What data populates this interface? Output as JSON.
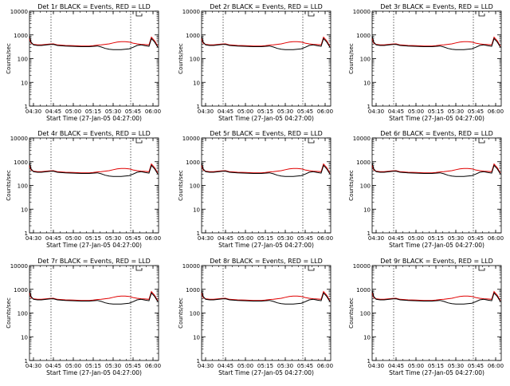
{
  "chart_data": {
    "type": "line",
    "x_ticks": [
      "04:30",
      "04:45",
      "05:00",
      "05:15",
      "05:30",
      "05:45",
      "06:00"
    ],
    "x_tick_hours": [
      4.5,
      4.75,
      5.0,
      5.25,
      5.5,
      5.75,
      6.0
    ],
    "xlim_hours": [
      4.45,
      6.07
    ],
    "xlabel": "Start Time (27-Jan-05 04:27:00)",
    "ylabel": "Counts/sec",
    "yscale": "log",
    "ylim": [
      1,
      10000
    ],
    "y_ticks": [
      "1",
      "10",
      "100",
      "1000",
      "10000"
    ],
    "dotted_vlines_hours": [
      4.72,
      5.72
    ],
    "legend_box_hour": 5.79,
    "grid": false,
    "series_colors": {
      "black": "#000000",
      "red": "#e00000"
    },
    "black_hours": [
      4.45,
      4.47,
      4.5,
      4.55,
      4.6,
      4.7,
      4.75,
      4.8,
      4.9,
      5.0,
      5.1,
      5.2,
      5.25,
      5.3,
      5.35,
      5.4,
      5.45,
      5.5,
      5.55,
      5.6,
      5.65,
      5.7,
      5.75,
      5.8,
      5.85,
      5.9,
      5.95,
      5.98,
      6.02,
      6.06
    ],
    "black_values": [
      900,
      500,
      380,
      360,
      360,
      390,
      400,
      360,
      340,
      330,
      320,
      320,
      330,
      340,
      310,
      270,
      250,
      240,
      240,
      240,
      250,
      260,
      300,
      360,
      380,
      350,
      330,
      700,
      500,
      300
    ],
    "red_hours": [
      4.45,
      4.47,
      4.5,
      4.55,
      4.6,
      4.7,
      4.75,
      4.8,
      4.9,
      5.0,
      5.1,
      5.2,
      5.25,
      5.3,
      5.35,
      5.4,
      5.45,
      5.5,
      5.55,
      5.6,
      5.65,
      5.7,
      5.75,
      5.8,
      5.85,
      5.9,
      5.95,
      5.98,
      6.02,
      6.06
    ],
    "red_values": [
      700,
      450,
      400,
      380,
      380,
      410,
      420,
      380,
      360,
      350,
      340,
      340,
      350,
      370,
      380,
      400,
      420,
      460,
      500,
      520,
      520,
      500,
      450,
      420,
      400,
      390,
      380,
      800,
      560,
      330
    ],
    "panels": [
      {
        "title": "Det 1r BLACK = Events, RED = LLD"
      },
      {
        "title": "Det 2r BLACK = Events, RED = LLD"
      },
      {
        "title": "Det 3r BLACK = Events, RED = LLD"
      },
      {
        "title": "Det 4r BLACK = Events, RED = LLD"
      },
      {
        "title": "Det 5r BLACK = Events, RED = LLD"
      },
      {
        "title": "Det 6r BLACK = Events, RED = LLD"
      },
      {
        "title": "Det 7r BLACK = Events, RED = LLD"
      },
      {
        "title": "Det 8r BLACK = Events, RED = LLD"
      },
      {
        "title": "Det 9r BLACK = Events, RED = LLD"
      }
    ]
  }
}
